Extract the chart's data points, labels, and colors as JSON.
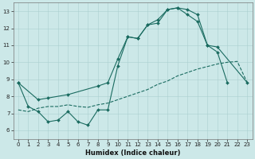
{
  "xlabel": "Humidex (Indice chaleur)",
  "ylabel": "",
  "bg_color": "#cce8e8",
  "grid_color": "#aacfcf",
  "line_color": "#1a6b60",
  "xlim": [
    -0.5,
    23.5
  ],
  "ylim": [
    5.5,
    13.5
  ],
  "xticks": [
    0,
    1,
    2,
    3,
    4,
    5,
    6,
    7,
    8,
    9,
    10,
    11,
    12,
    13,
    14,
    15,
    16,
    17,
    18,
    19,
    20,
    21,
    22,
    23
  ],
  "yticks": [
    6,
    7,
    8,
    9,
    10,
    11,
    12,
    13
  ],
  "series1_x": [
    0,
    1,
    2,
    3,
    4,
    5,
    6,
    7,
    8,
    9,
    10,
    11,
    12,
    13,
    14,
    15,
    16,
    17,
    18,
    19,
    20,
    21
  ],
  "series1_y": [
    8.8,
    7.4,
    7.1,
    6.5,
    6.6,
    7.1,
    6.5,
    6.3,
    7.2,
    7.2,
    9.8,
    11.5,
    11.4,
    12.2,
    12.3,
    13.1,
    13.2,
    12.8,
    12.4,
    11.0,
    10.6,
    8.8
  ],
  "series2_x": [
    0,
    2,
    3,
    5,
    8,
    9,
    10,
    11,
    12,
    13,
    14,
    15,
    16,
    17,
    18,
    19,
    20,
    23
  ],
  "series2_y": [
    8.8,
    7.8,
    7.9,
    8.1,
    8.6,
    8.8,
    10.2,
    11.5,
    11.4,
    12.2,
    12.5,
    13.1,
    13.2,
    13.1,
    12.8,
    11.0,
    10.9,
    8.8
  ],
  "series3_x": [
    0,
    1,
    2,
    3,
    4,
    5,
    6,
    7,
    8,
    9,
    10,
    11,
    12,
    13,
    14,
    15,
    16,
    17,
    18,
    19,
    20,
    21,
    22,
    23
  ],
  "series3_y": [
    7.2,
    7.1,
    7.3,
    7.4,
    7.4,
    7.5,
    7.4,
    7.35,
    7.5,
    7.6,
    7.8,
    8.0,
    8.2,
    8.4,
    8.7,
    8.9,
    9.2,
    9.4,
    9.6,
    9.75,
    9.9,
    10.0,
    10.05,
    8.8
  ]
}
